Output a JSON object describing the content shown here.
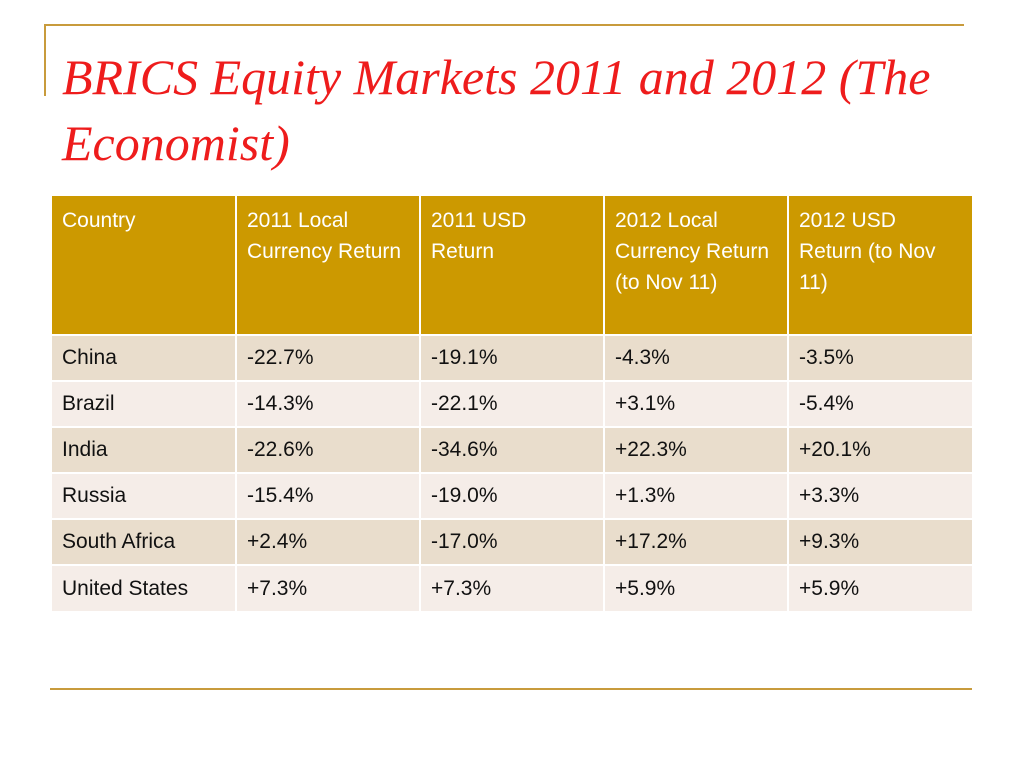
{
  "title": "BRICS Equity Markets 2011 and 2012 (The Economist)",
  "table": {
    "headers": [
      "Country",
      "2011 Local Currency Return",
      "2011 USD Return",
      "2012 Local Currency Return (to Nov 11)",
      "2012 USD Return (to Nov 11)"
    ],
    "rows": [
      [
        "China",
        "-22.7%",
        "-19.1%",
        "-4.3%",
        "-3.5%"
      ],
      [
        "Brazil",
        "-14.3%",
        "-22.1%",
        "+3.1%",
        "-5.4%"
      ],
      [
        "India",
        "-22.6%",
        "-34.6%",
        "+22.3%",
        "+20.1%"
      ],
      [
        "Russia",
        "-15.4%",
        "-19.0%",
        "+1.3%",
        "+3.3%"
      ],
      [
        "South Africa",
        "+2.4%",
        "-17.0%",
        "+17.2%",
        "+9.3%"
      ],
      [
        "United States",
        "+7.3%",
        "+7.3%",
        "+5.9%",
        "+5.9%"
      ]
    ]
  },
  "colors": {
    "title": "#ee1c1c",
    "header_bg": "#cc9900",
    "row_odd_bg": "#e9ddcc",
    "row_even_bg": "#f5ede8",
    "accent_line": "#c89b3c"
  }
}
